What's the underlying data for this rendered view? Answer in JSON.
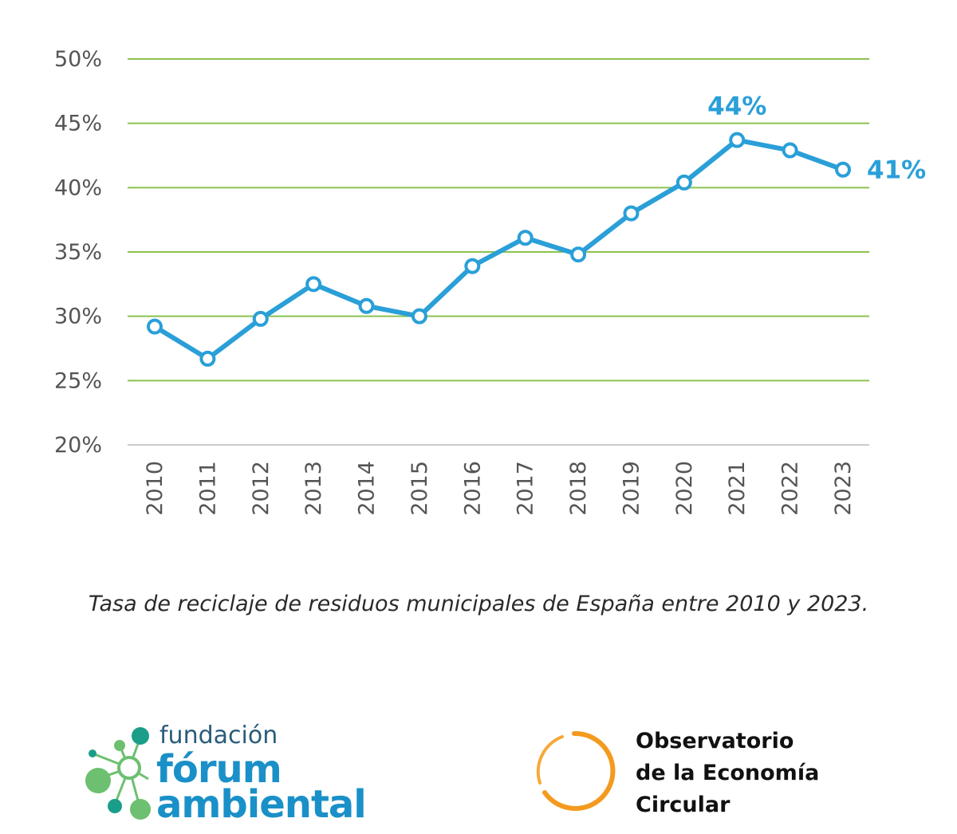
{
  "chart_data": {
    "type": "line",
    "x": [
      "2010",
      "2011",
      "2012",
      "2013",
      "2014",
      "2015",
      "2016",
      "2017",
      "2018",
      "2019",
      "2020",
      "2021",
      "2022",
      "2023"
    ],
    "series": [
      {
        "values": [
          29.2,
          26.7,
          29.8,
          32.5,
          30.8,
          30.0,
          33.9,
          36.1,
          34.8,
          38.0,
          40.4,
          43.7,
          42.9,
          41.4
        ]
      }
    ],
    "ylim": [
      20,
      50
    ],
    "yticks": [
      20,
      25,
      30,
      35,
      40,
      45,
      50
    ],
    "ytick_labels": [
      "20%",
      "25%",
      "30%",
      "35%",
      "40%",
      "45%",
      "50%"
    ],
    "annotations": [
      {
        "index": 11,
        "text": "44%"
      },
      {
        "index": 13,
        "text": "41%"
      }
    ],
    "grid": true,
    "line_color": "#2a9fd8",
    "grid_color": "#8cc152",
    "xaxis_line_color": "#cccccc"
  },
  "caption": "Tasa de reciclaje de residuos municipales de España entre 2010 y 2023.",
  "logos": {
    "fundacion": {
      "line1": "fundación",
      "line2": "fórum",
      "line3": "ambiental"
    },
    "observatorio": {
      "line1": "Observatorio",
      "line2": "de la Economía",
      "line3": "Circular"
    }
  }
}
